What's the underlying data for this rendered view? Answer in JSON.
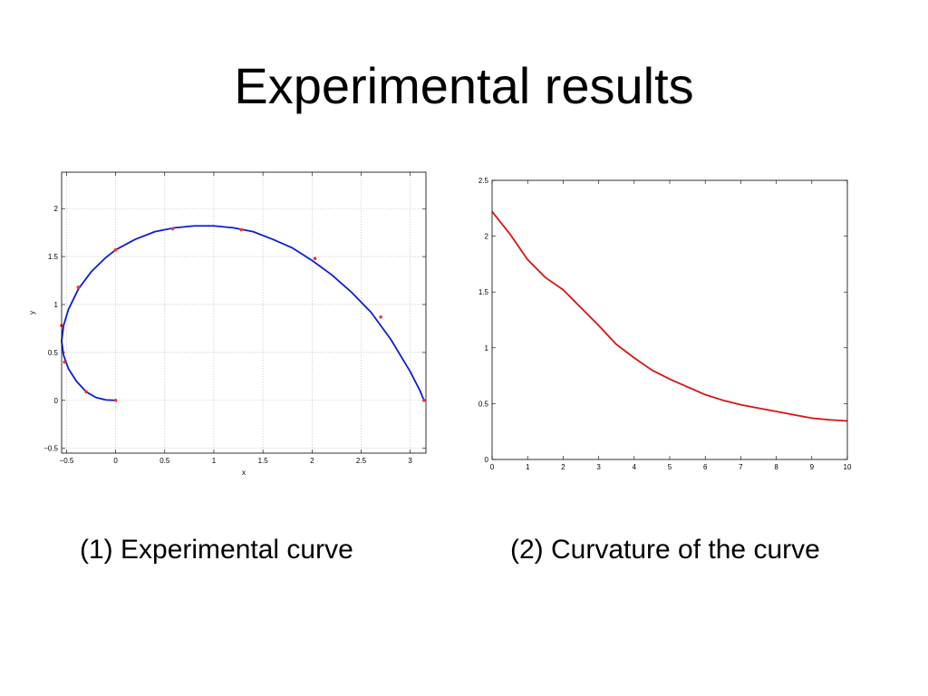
{
  "title": "Experimental results",
  "captions": [
    "(1) Experimental curve",
    "(2) Curvature of the curve"
  ],
  "colors": {
    "curve_blue": "#0a1ed8",
    "marker_red": "#ff3030",
    "curve_red": "#dd1111",
    "grid": "#c8c8c8"
  },
  "chart_data": [
    {
      "type": "line",
      "xlabel": "x",
      "ylabel": "y",
      "xlim": [
        -0.55,
        3.16
      ],
      "ylim": [
        -0.55,
        2.38
      ],
      "xticks": [
        -0.5,
        0,
        0.5,
        1,
        1.5,
        2,
        2.5,
        3
      ],
      "xtick_labels": [
        "−0.5",
        "0",
        "0.5",
        "1",
        "1.5",
        "2",
        "2.5",
        "3"
      ],
      "yticks": [
        -0.5,
        0,
        0.5,
        1,
        1.5,
        2
      ],
      "ytick_labels": [
        "−0.5",
        "0",
        "0.5",
        "1",
        "1.5",
        "2"
      ],
      "grid": true,
      "series": [
        {
          "color": "#0a1ed8",
          "x": [
            0,
            -0.1,
            -0.2,
            -0.3,
            -0.4,
            -0.48,
            -0.53,
            -0.55,
            -0.53,
            -0.48,
            -0.38,
            -0.25,
            -0.1,
            0,
            0.2,
            0.4,
            0.6,
            0.8,
            1.0,
            1.2,
            1.4,
            1.6,
            1.8,
            2.0,
            2.2,
            2.4,
            2.6,
            2.8,
            2.9,
            3.0,
            3.1,
            3.14
          ],
          "y": [
            0,
            0.005,
            0.03,
            0.09,
            0.2,
            0.33,
            0.47,
            0.62,
            0.78,
            0.95,
            1.16,
            1.34,
            1.49,
            1.57,
            1.68,
            1.76,
            1.8,
            1.82,
            1.82,
            1.8,
            1.76,
            1.68,
            1.59,
            1.46,
            1.31,
            1.13,
            0.92,
            0.64,
            0.47,
            0.3,
            0.1,
            0.0
          ]
        }
      ],
      "markers": {
        "color": "#ff3030",
        "x": [
          0,
          -0.3,
          -0.52,
          -0.55,
          -0.38,
          0,
          0.58,
          1.28,
          2.03,
          2.7,
          3.14
        ],
        "y": [
          0,
          0.09,
          0.4,
          0.78,
          1.18,
          1.57,
          1.79,
          1.78,
          1.48,
          0.87,
          0.0
        ]
      }
    },
    {
      "type": "line",
      "xlim": [
        0,
        10
      ],
      "ylim": [
        0,
        2.5
      ],
      "xticks": [
        0,
        1,
        2,
        3,
        4,
        5,
        6,
        7,
        8,
        9,
        10
      ],
      "xtick_labels": [
        "0",
        "1",
        "2",
        "3",
        "4",
        "5",
        "6",
        "7",
        "8",
        "9",
        "10"
      ],
      "yticks": [
        0,
        0.5,
        1,
        1.5,
        2,
        2.5
      ],
      "ytick_labels": [
        "0",
        "0.5",
        "1",
        "1.5",
        "2",
        "2.5"
      ],
      "grid": false,
      "series": [
        {
          "color": "#dd1111",
          "x": [
            0,
            0.5,
            1,
            1.5,
            2,
            2.5,
            3,
            3.5,
            4,
            4.5,
            5,
            5.5,
            6,
            6.5,
            7,
            7.5,
            8,
            8.5,
            9,
            9.5,
            10
          ],
          "y": [
            2.22,
            2.02,
            1.79,
            1.63,
            1.52,
            1.36,
            1.2,
            1.03,
            0.91,
            0.8,
            0.72,
            0.65,
            0.58,
            0.53,
            0.49,
            0.46,
            0.43,
            0.4,
            0.37,
            0.355,
            0.345
          ]
        }
      ]
    }
  ]
}
